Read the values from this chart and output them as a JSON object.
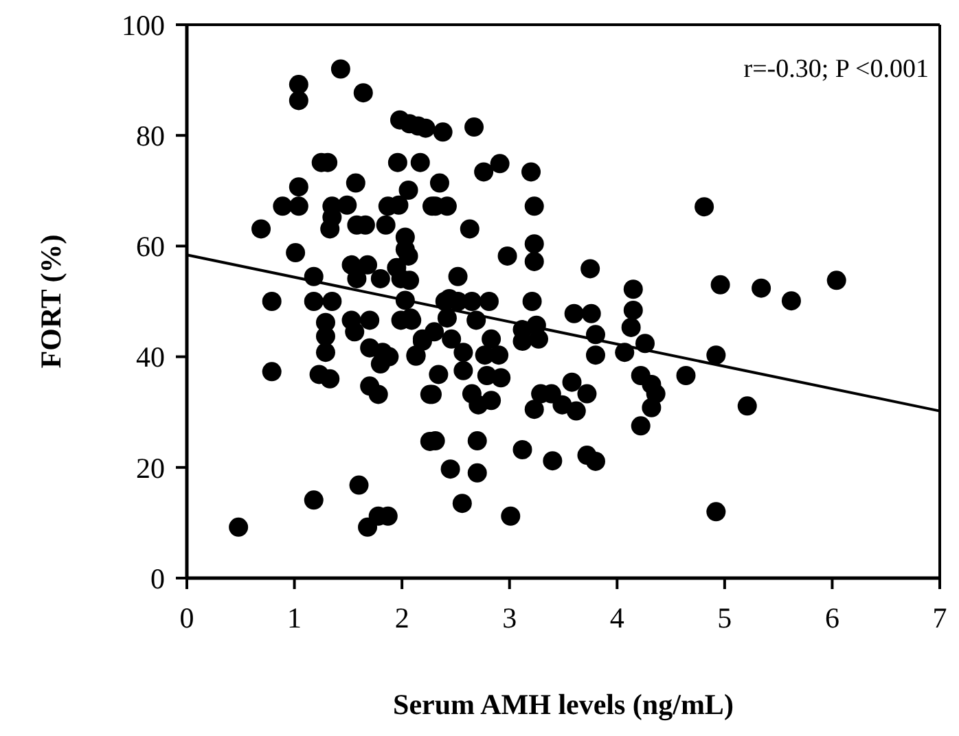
{
  "chart_data": {
    "type": "scatter",
    "xlabel": "Serum AMH levels (ng/mL)",
    "ylabel": "FORT (%)",
    "xlim": [
      0,
      7
    ],
    "ylim": [
      0,
      100
    ],
    "xticks": [
      0,
      1,
      2,
      3,
      4,
      5,
      6,
      7
    ],
    "yticks": [
      0,
      20,
      40,
      60,
      80,
      100
    ],
    "grid": false,
    "marker": "circle",
    "annotations": [
      "r=-0.30; P <0.001"
    ],
    "series": [
      {
        "color": "#000000",
        "x": [
          1.43,
          1.04,
          1.04,
          1.64,
          1.98,
          2.07,
          2.15,
          2.22,
          1.25,
          1.31,
          1.96,
          2.17,
          1.04,
          1.57,
          2.06,
          0.89,
          1.04,
          1.35,
          1.49,
          1.87,
          1.97,
          2.28,
          0.69,
          1.35,
          1.33,
          1.58,
          1.66,
          1.85,
          2.03,
          2.03,
          1.01,
          1.18,
          1.53,
          1.68,
          1.58,
          1.8,
          1.95,
          2.07,
          1.99,
          0.79,
          1.18,
          1.35,
          2.03,
          2.38,
          2.67,
          2.76,
          2.91,
          3.2,
          2.35,
          2.31,
          2.42,
          3.23,
          2.63,
          3.23,
          3.23,
          2.98,
          3.75,
          2.52,
          2.06,
          4.15,
          2.4,
          2.52,
          2.65,
          2.81,
          3.21,
          3.6,
          3.76,
          4.15,
          1.29,
          1.29,
          1.29,
          1.53,
          1.56,
          1.7,
          1.99,
          2.09,
          1.7,
          1.82,
          1.88,
          1.8,
          2.13,
          2.19,
          0.79,
          1.23,
          1.33,
          1.7,
          1.78,
          2.26,
          2.26,
          1.6,
          1.18,
          0.48,
          1.68,
          1.78,
          1.87,
          2.44,
          2.08,
          2.42,
          2.69,
          4.13,
          2.3,
          2.19,
          2.46,
          2.83,
          3.12,
          3.12,
          3.27,
          3.25,
          3.8,
          3.8,
          4.07,
          4.26,
          2.13,
          2.57,
          2.57,
          2.77,
          2.9,
          2.34,
          2.79,
          2.92,
          2.28,
          2.65,
          2.71,
          2.83,
          3.29,
          3.39,
          3.58,
          3.72,
          3.49,
          3.62,
          3.23,
          4.22,
          4.32,
          4.36,
          4.32,
          4.22,
          2.31,
          2.7,
          3.12,
          3.4,
          3.72,
          3.8,
          2.45,
          2.7,
          2.56,
          3.01,
          4.81,
          4.96,
          5.34,
          5.62,
          6.04,
          4.92,
          4.64,
          5.21,
          4.92
        ],
        "values": [
          92,
          89.2,
          86.3,
          87.7,
          82.8,
          82.1,
          81.7,
          81.3,
          75.1,
          75.1,
          75.1,
          75.1,
          70.7,
          71.4,
          70.1,
          67.2,
          67.2,
          67.2,
          67.4,
          67.2,
          67.4,
          67.2,
          63.1,
          65.2,
          63.1,
          63.8,
          63.8,
          63.8,
          61.6,
          59.4,
          58.8,
          54.5,
          56.6,
          56.6,
          54.1,
          54.1,
          56.1,
          53.8,
          54.1,
          50,
          50,
          50,
          50.2,
          80.6,
          81.5,
          73.4,
          74.9,
          73.4,
          71.4,
          67.2,
          67.2,
          67.2,
          63.1,
          60.4,
          57.2,
          58.2,
          55.9,
          54.5,
          58.2,
          52.2,
          50,
          50,
          50,
          50,
          50,
          47.8,
          47.8,
          48.4,
          46.2,
          43.7,
          40.8,
          46.6,
          44.5,
          46.6,
          46.6,
          46.6,
          41.6,
          40.8,
          40,
          38.7,
          40.3,
          43.2,
          37.3,
          36.8,
          36,
          34.7,
          33.2,
          33.2,
          24.7,
          16.8,
          14.1,
          9.2,
          9.2,
          11.2,
          11.2,
          50.5,
          47,
          47,
          46.6,
          45.3,
          44.5,
          42.8,
          43.2,
          43.2,
          44.9,
          42.8,
          43.2,
          45.7,
          44,
          40.3,
          40.8,
          42.4,
          40.1,
          40.8,
          37.5,
          40.3,
          40.3,
          36.8,
          36.6,
          36.2,
          33.2,
          33.3,
          31.3,
          32.1,
          33.3,
          33.3,
          35.4,
          33.3,
          31.3,
          30.2,
          30.5,
          36.6,
          35,
          33.3,
          30.8,
          27.5,
          24.8,
          24.8,
          23.2,
          21.2,
          22.2,
          21.1,
          19.7,
          19,
          13.5,
          11.2,
          67.1,
          53,
          52.4,
          50.1,
          53.8,
          40.3,
          36.6,
          31.1,
          12
        ]
      },
      {
        "type": "line",
        "color": "#000000",
        "marker": "none",
        "line_style": "solid",
        "x": [
          0,
          7
        ],
        "values": [
          58.4,
          30.2
        ]
      }
    ]
  }
}
